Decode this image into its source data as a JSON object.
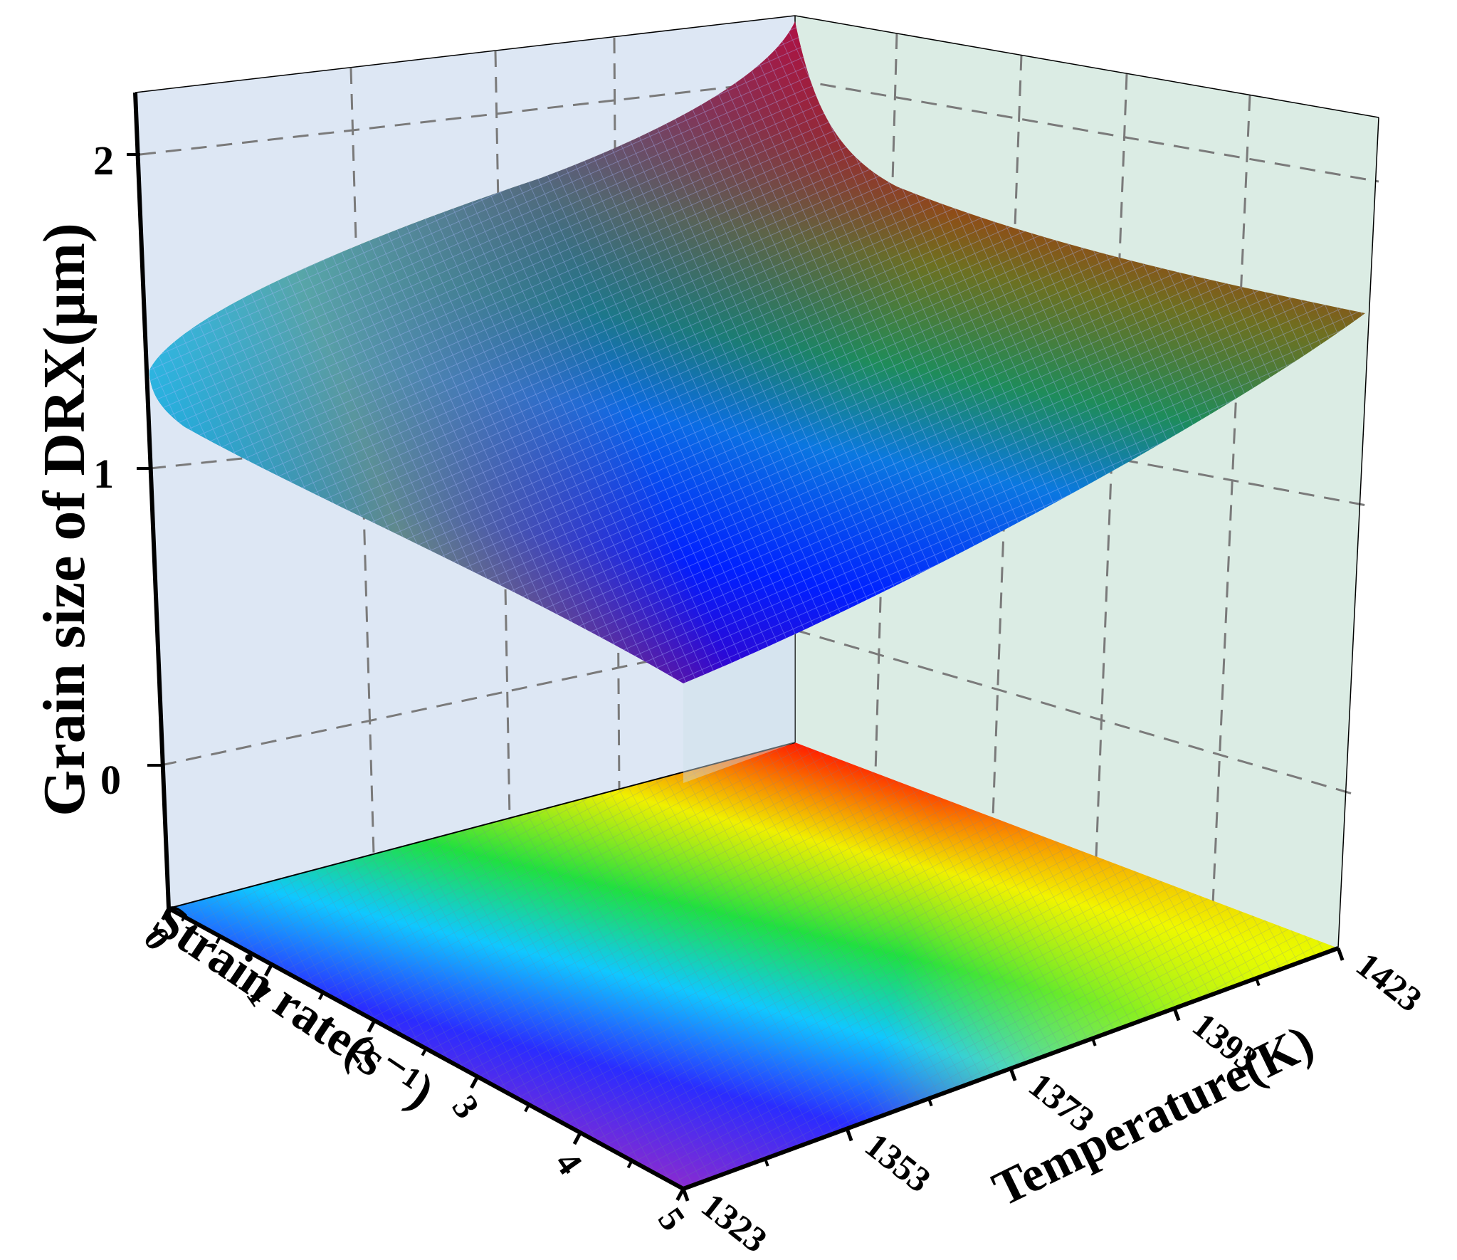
{
  "chart_data": {
    "type": "surface3d",
    "zlabel": "Grain size of DRX(μm)",
    "xlabel": "Strain rate(s⁻¹)",
    "ylabel": "Temperature(K)",
    "x_ticks": [
      "0",
      "1",
      "2",
      "3",
      "4",
      "5"
    ],
    "y_ticks": [
      "1323",
      "1353",
      "1373",
      "1393",
      "1423"
    ],
    "z_ticks": [
      "0",
      "1",
      "2"
    ],
    "x_range": [
      0,
      5
    ],
    "y_range": [
      1323,
      1423
    ],
    "z_range": [
      -0.5,
      2.2
    ],
    "colormap": [
      "#7a1fa8",
      "#0000ff",
      "#00ffff",
      "#00ff00",
      "#ffff00",
      "#ff0000"
    ],
    "surface_corner_values": [
      {
        "strain_rate": 0,
        "temperature": 1323,
        "grain_size": 1.38
      },
      {
        "strain_rate": 5,
        "temperature": 1323,
        "grain_size": 0.28
      },
      {
        "strain_rate": 5,
        "temperature": 1423,
        "grain_size": 1.52
      },
      {
        "strain_rate": 0,
        "temperature": 1423,
        "grain_size": 2.5
      }
    ],
    "projection": "contour on floor",
    "grid": true,
    "left_wall_color": "#dde7f4",
    "right_wall_color": "#dbece4"
  }
}
